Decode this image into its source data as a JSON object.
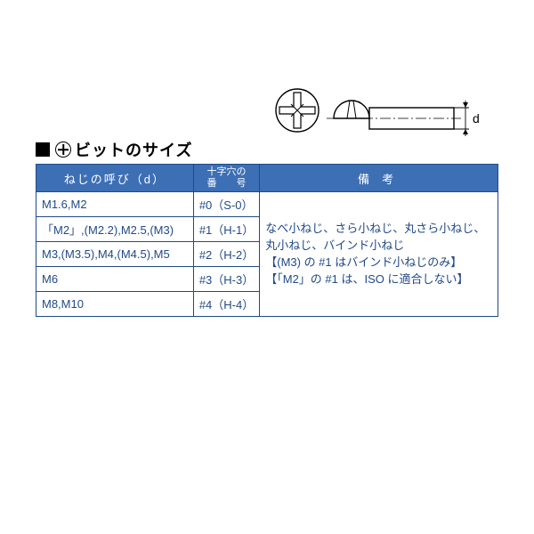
{
  "title": "ビットのサイズ",
  "headers": {
    "thread": "ねじの呼び（d）",
    "number_line1": "十字穴の",
    "number_line2": "番　　号",
    "remark": "備考"
  },
  "rows": [
    {
      "thread": "M1.6,M2",
      "number": "#0（S-0）"
    },
    {
      "thread": "「M2」,(M2.2),M2.5,(M3)",
      "number": "#1（H-1）"
    },
    {
      "thread": "M3,(M3.5),M4,(M4.5),M5",
      "number": "#2（H-2）"
    },
    {
      "thread": "M6",
      "number": "#3（H-3）"
    },
    {
      "thread": "M8,M10",
      "number": "#4（H-4）"
    }
  ],
  "remark_text": "なべ小ねじ、さら小ねじ、丸さら小ねじ、丸小ねじ、バインド小ねじ\n【(M3) の #1 はバインド小ねじのみ】\n【「M2」の #1 は、ISO に適合しない】",
  "colors": {
    "border": "#204a87",
    "header_bg": "#3d6fb5",
    "header_fg": "#ffffff",
    "cell_fg": "#204a87"
  },
  "diagram": {
    "d_label": "d"
  }
}
